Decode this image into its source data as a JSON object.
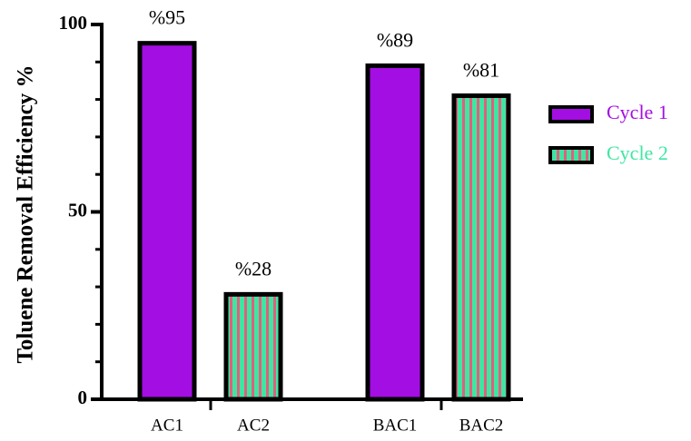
{
  "chart_data": {
    "type": "bar",
    "y_label": "Toluene Removal Efficiency %",
    "categories": [
      "AC1",
      "AC2",
      "BAC1",
      "BAC2"
    ],
    "series": [
      {
        "name": "Cycle 1",
        "color": "#a30ee3",
        "values": [
          95,
          null,
          89,
          null
        ],
        "value_labels": [
          "%95",
          null,
          "%89",
          null
        ]
      },
      {
        "name": "Cycle 2",
        "color": "#3fe6a3",
        "stripe_color": "#e0607c",
        "values": [
          null,
          28,
          null,
          81
        ],
        "value_labels": [
          null,
          "%28",
          null,
          "%81"
        ]
      }
    ],
    "ylim": [
      0,
      100
    ],
    "yticks": [
      0,
      50,
      100
    ],
    "yminorticks": [
      10,
      20,
      30,
      40,
      60,
      70,
      80,
      90
    ],
    "legend": "right"
  }
}
